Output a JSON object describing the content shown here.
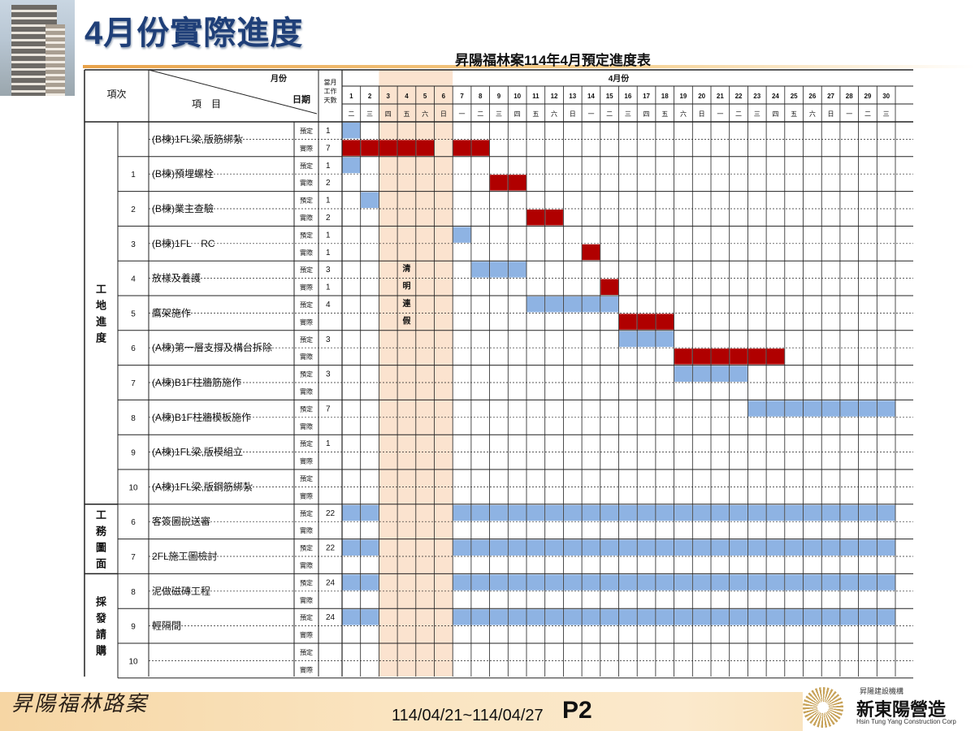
{
  "slide": {
    "title": "4月份實際進度",
    "sheet_title": "昇陽福林案114年4月預定進度表"
  },
  "header": {
    "col_index": "項次",
    "col_item": "項　目",
    "col_month_label": "月份",
    "col_date_label": "日期",
    "col_days": [
      "當月",
      "工作",
      "天數"
    ],
    "month": "4月份",
    "days": [
      "1",
      "2",
      "3",
      "4",
      "5",
      "6",
      "7",
      "8",
      "9",
      "10",
      "11",
      "12",
      "13",
      "14",
      "15",
      "16",
      "17",
      "18",
      "19",
      "20",
      "21",
      "22",
      "23",
      "24",
      "25",
      "26",
      "27",
      "28",
      "29",
      "30"
    ],
    "weekdays": [
      "二",
      "三",
      "四",
      "五",
      "六",
      "日",
      "一",
      "二",
      "三",
      "四",
      "五",
      "六",
      "日",
      "一",
      "二",
      "三",
      "四",
      "五",
      "六",
      "日",
      "一",
      "二",
      "三",
      "四",
      "五",
      "六",
      "日",
      "一",
      "二",
      "三"
    ]
  },
  "labels": {
    "plan": "預定",
    "actual": "實際"
  },
  "holiday": {
    "days": [
      3,
      4,
      5,
      6
    ],
    "text": [
      "清",
      "明",
      "連",
      "假"
    ]
  },
  "groups": [
    {
      "name": [
        "工",
        "地",
        "進",
        "度"
      ],
      "from": 0,
      "to": 10
    },
    {
      "name": [
        "工",
        "務",
        "圖",
        "面"
      ],
      "from": 11,
      "to": 12
    },
    {
      "name": [
        "採",
        "發",
        "請",
        "購"
      ],
      "from": 13,
      "to": 15
    }
  ],
  "rows": [
    {
      "index": "",
      "item": "(B棟)1FL梁,版筋綁紮",
      "plan_days": "1",
      "actual_days": "7",
      "plan": [
        [
          1,
          1
        ]
      ],
      "actual": [
        [
          1,
          5
        ],
        [
          7,
          8
        ]
      ]
    },
    {
      "index": "1",
      "item": "(B棟)預埋螺栓",
      "plan_days": "1",
      "actual_days": "2",
      "plan": [
        [
          1,
          1
        ]
      ],
      "actual": [
        [
          9,
          10
        ]
      ]
    },
    {
      "index": "2",
      "item": "(B棟)業主查驗",
      "plan_days": "1",
      "actual_days": "2",
      "plan": [
        [
          2,
          2
        ]
      ],
      "actual": [
        [
          11,
          12
        ]
      ]
    },
    {
      "index": "3",
      "item": "(B棟)1FL　RC",
      "plan_days": "1",
      "actual_days": "1",
      "plan": [
        [
          7,
          7
        ]
      ],
      "actual": [
        [
          14,
          14
        ]
      ]
    },
    {
      "index": "4",
      "item": "放樣及養護",
      "plan_days": "3",
      "actual_days": "1",
      "plan": [
        [
          8,
          10
        ]
      ],
      "actual": [
        [
          15,
          15
        ]
      ]
    },
    {
      "index": "5",
      "item": "鷹架施作",
      "plan_days": "4",
      "actual_days": "",
      "plan": [
        [
          11,
          15
        ]
      ],
      "actual": [
        [
          16,
          18
        ]
      ]
    },
    {
      "index": "6",
      "item": "(A棟)第一層支撐及構台拆除",
      "plan_days": "3",
      "actual_days": "",
      "plan": [
        [
          16,
          18
        ]
      ],
      "actual": [
        [
          19,
          24
        ]
      ]
    },
    {
      "index": "7",
      "item": "(A棟)B1F柱牆筋施作",
      "plan_days": "3",
      "actual_days": "",
      "plan": [
        [
          19,
          22
        ]
      ],
      "actual": []
    },
    {
      "index": "8",
      "item": "(A棟)B1F柱牆模板施作",
      "plan_days": "7",
      "actual_days": "",
      "plan": [
        [
          23,
          30
        ]
      ],
      "actual": []
    },
    {
      "index": "9",
      "item": "(A棟)1FL梁,版模組立",
      "plan_days": "1",
      "actual_days": "",
      "plan": [],
      "actual": []
    },
    {
      "index": "10",
      "item": "(A棟)1FL梁,版鋼筋綁紮",
      "plan_days": "",
      "actual_days": "",
      "plan": [],
      "actual": []
    },
    {
      "index": "6",
      "item": "客簽圖說送審",
      "plan_days": "22",
      "actual_days": "",
      "plan": [
        [
          1,
          2
        ],
        [
          7,
          30
        ]
      ],
      "actual": []
    },
    {
      "index": "7",
      "item": "2FL施工圖檢討",
      "plan_days": "22",
      "actual_days": "",
      "plan": [
        [
          1,
          2
        ],
        [
          7,
          30
        ]
      ],
      "actual": []
    },
    {
      "index": "8",
      "item": "泥做磁磚工程",
      "plan_days": "24",
      "actual_days": "",
      "plan": [
        [
          1,
          2
        ],
        [
          7,
          30
        ]
      ],
      "actual": []
    },
    {
      "index": "9",
      "item": "輕隔間",
      "plan_days": "24",
      "actual_days": "",
      "plan": [
        [
          1,
          2
        ],
        [
          7,
          30
        ]
      ],
      "actual": []
    },
    {
      "index": "10",
      "item": "",
      "plan_days": "",
      "actual_days": "",
      "plan": [],
      "actual": []
    }
  ],
  "colors": {
    "plan": "#8eb3e3",
    "actual": "#b00000",
    "holiday": "#fbe3cf"
  },
  "footer": {
    "project_logo": "昇陽福林路案",
    "date_range": "114/04/21~114/04/27",
    "page": "P2",
    "company_small": "昇陽建設機構",
    "company_name": "新東陽營造",
    "company_en": "Hsin Tung Yang Construction Corp"
  }
}
